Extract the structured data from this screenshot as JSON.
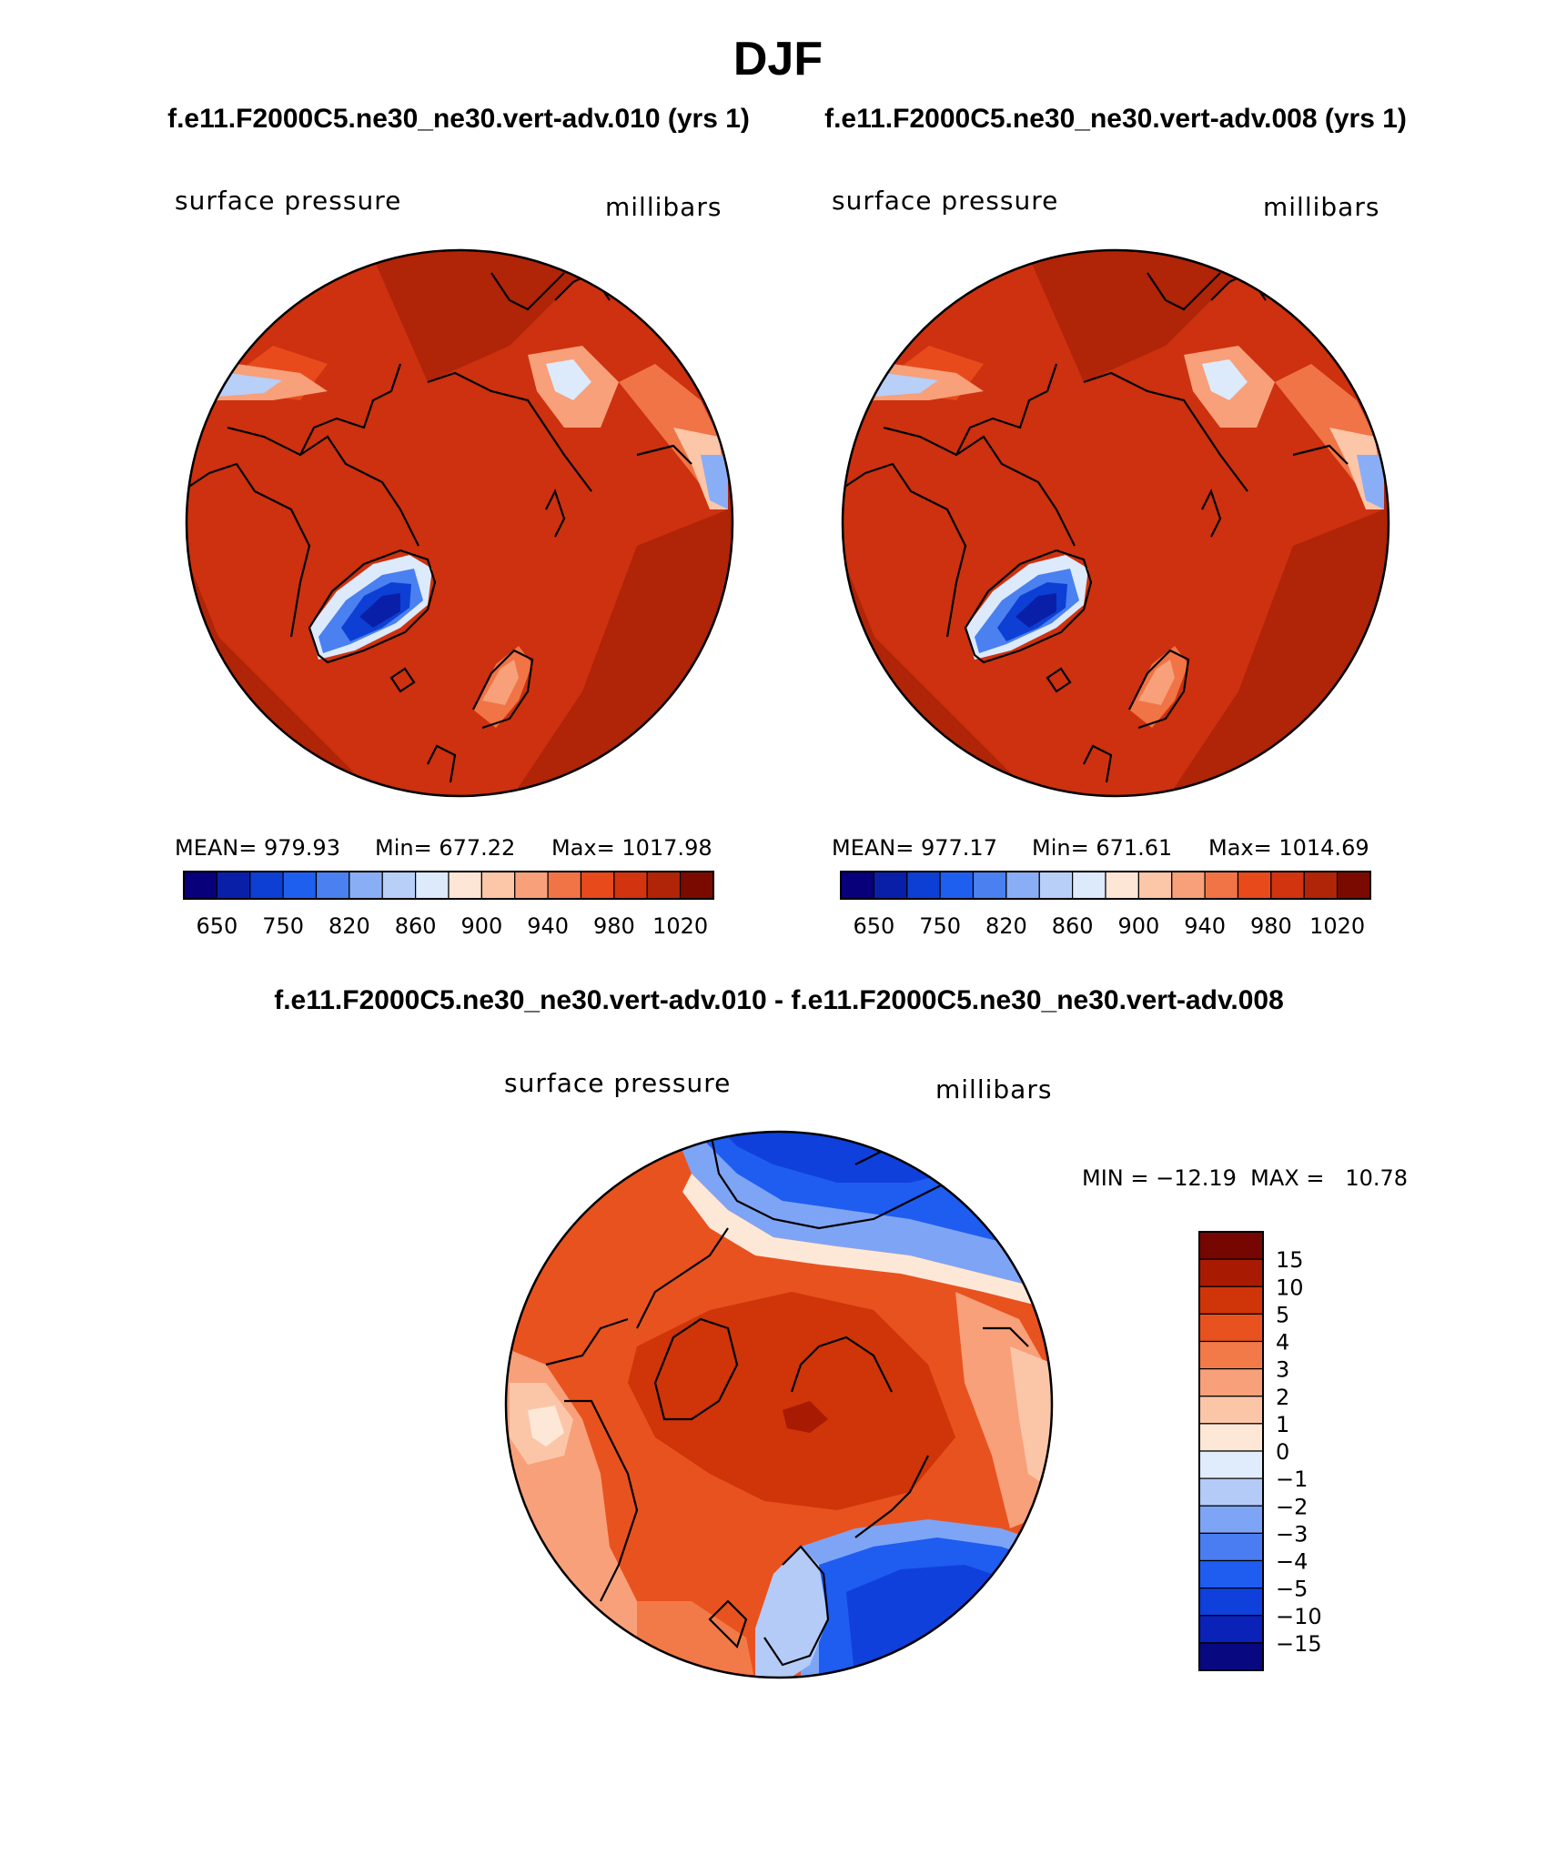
{
  "title": "DJF",
  "subtitle_left": "f.e11.F2000C5.ne30_ne30.vert-adv.010 (yrs 1)",
  "subtitle_right": "f.e11.F2000C5.ne30_ne30.vert-adv.008 (yrs 1)",
  "diff_title": "f.e11.F2000C5.ne30_ne30.vert-adv.010 - f.e11.F2000C5.ne30_ne30.vert-adv.008",
  "colors": {
    "abs_scale": [
      "#08007a",
      "#0a1fa8",
      "#0d3fd4",
      "#1f5ff0",
      "#4a80f0",
      "#8aaef5",
      "#b8cff8",
      "#dceafc",
      "#fde6d6",
      "#fcc6a8",
      "#f7a07a",
      "#f07446",
      "#e84a1c",
      "#d23410",
      "#b02408",
      "#7a0a00"
    ],
    "diff_scale": [
      "#080880",
      "#0b22b8",
      "#0f40dc",
      "#1f5cf0",
      "#4a7df2",
      "#7ea4f5",
      "#b4cbf8",
      "#e0ecfb",
      "#fde8d8",
      "#fbc6a8",
      "#f8a07a",
      "#f27a48",
      "#e8521f",
      "#cf3508",
      "#a81a02",
      "#750600"
    ],
    "land_outline": "#000000"
  },
  "chart_data": [
    {
      "type": "heatmap",
      "projection": "north-polar-stereographic",
      "label_left": "surface pressure",
      "label_right": "millibars",
      "stats": {
        "mean_text": "MEAN= 979.93",
        "min_text": "Min= 677.22",
        "max_text": "Max= 1017.98",
        "mean": 979.93,
        "min": 677.22,
        "max": 1017.98
      },
      "colorbar_ticks": [
        "650",
        "750",
        "820",
        "860",
        "900",
        "940",
        "980",
        "1020"
      ],
      "colorbar_levels": [
        650,
        700,
        750,
        800,
        820,
        840,
        860,
        880,
        900,
        920,
        940,
        960,
        980,
        1000,
        1020
      ]
    },
    {
      "type": "heatmap",
      "projection": "north-polar-stereographic",
      "label_left": "surface pressure",
      "label_right": "millibars",
      "stats": {
        "mean_text": "MEAN= 977.17",
        "min_text": "Min= 671.61",
        "max_text": "Max= 1014.69",
        "mean": 977.17,
        "min": 671.61,
        "max": 1014.69
      },
      "colorbar_ticks": [
        "650",
        "750",
        "820",
        "860",
        "900",
        "940",
        "980",
        "1020"
      ],
      "colorbar_levels": [
        650,
        700,
        750,
        800,
        820,
        840,
        860,
        880,
        900,
        920,
        940,
        960,
        980,
        1000,
        1020
      ]
    },
    {
      "type": "heatmap",
      "projection": "north-polar-stereographic",
      "label_left": "surface pressure",
      "label_right": "millibars",
      "minmax_text": "MIN = −12.19  MAX =   10.78",
      "min": -12.19,
      "max": 10.78,
      "colorbar_ticks": [
        "15",
        "10",
        "5",
        "4",
        "3",
        "2",
        "1",
        "0",
        "−1",
        "−2",
        "−3",
        "−4",
        "−5",
        "−10",
        "−15"
      ],
      "colorbar_levels": [
        15,
        10,
        5,
        4,
        3,
        2,
        1,
        0,
        -1,
        -2,
        -3,
        -4,
        -5,
        -10,
        -15
      ]
    }
  ]
}
